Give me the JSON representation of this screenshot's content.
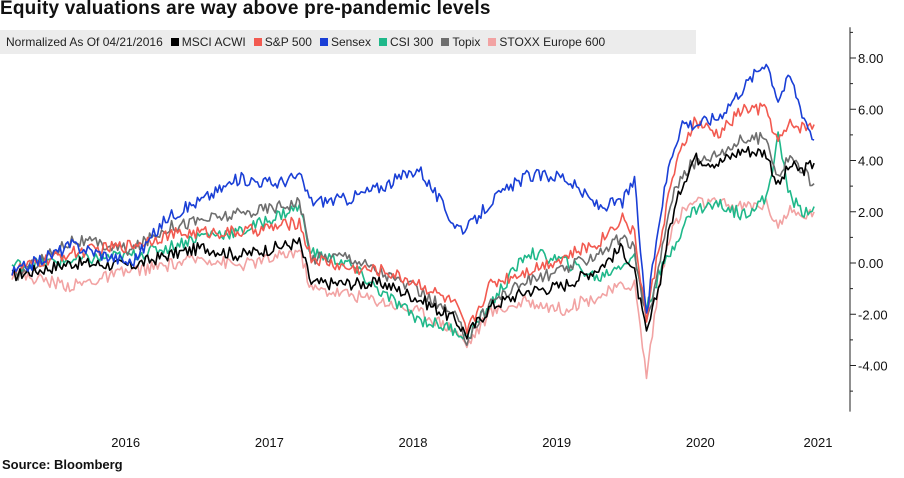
{
  "title": "Equity valuations are way above pre-pandemic levels",
  "source": "Source: Bloomberg",
  "chart_data": {
    "type": "line",
    "subtitle": "Normalized As Of 04/21/2016",
    "x_ticks": [
      "2016",
      "2017",
      "2018",
      "2019",
      "2020",
      "2021"
    ],
    "y_ticks": [
      "8.00",
      "6.00",
      "4.00",
      "2.00",
      "0.00",
      "-2.00",
      "-4.00"
    ],
    "ylim": [
      -5.8,
      9.2
    ],
    "xlim": [
      "2015-08",
      "2021-06"
    ],
    "grid": false,
    "legend_position": "top",
    "series": [
      {
        "name": "MSCI ACWI",
        "color": "#000000",
        "points": [
          [
            "2015-09",
            -0.5
          ],
          [
            "2016-02",
            0.0
          ],
          [
            "2016-07",
            -0.1
          ],
          [
            "2016-10",
            0.3
          ],
          [
            "2017-01",
            0.6
          ],
          [
            "2017-04",
            0.3
          ],
          [
            "2017-07",
            0.6
          ],
          [
            "2017-09",
            0.8
          ],
          [
            "2017-10",
            -0.8
          ],
          [
            "2018-01",
            -0.8
          ],
          [
            "2018-04",
            -0.8
          ],
          [
            "2018-07",
            -1.4
          ],
          [
            "2018-10",
            -2.2
          ],
          [
            "2018-11",
            -2.8
          ],
          [
            "2019-01",
            -1.7
          ],
          [
            "2019-04",
            -1.1
          ],
          [
            "2019-07",
            -0.9
          ],
          [
            "2019-10",
            -0.2
          ],
          [
            "2019-12",
            0.6
          ],
          [
            "2020-01",
            -0.4
          ],
          [
            "2020-02",
            -2.8
          ],
          [
            "2020-03",
            -1.0
          ],
          [
            "2020-04",
            1.5
          ],
          [
            "2020-05",
            3.1
          ],
          [
            "2020-06",
            4.1
          ],
          [
            "2020-08",
            3.9
          ],
          [
            "2020-10",
            4.4
          ],
          [
            "2020-12",
            4.3
          ],
          [
            "2021-01",
            3.0
          ],
          [
            "2021-02",
            3.8
          ],
          [
            "2021-03",
            3.6
          ],
          [
            "2021-04",
            3.9
          ]
        ]
      },
      {
        "name": "S&P 500",
        "color": "#f25a50",
        "points": [
          [
            "2015-09",
            -0.3
          ],
          [
            "2016-02",
            0.4
          ],
          [
            "2016-07",
            0.7
          ],
          [
            "2016-10",
            1.1
          ],
          [
            "2017-01",
            1.2
          ],
          [
            "2017-04",
            1.2
          ],
          [
            "2017-07",
            1.4
          ],
          [
            "2017-09",
            1.6
          ],
          [
            "2017-10",
            0.2
          ],
          [
            "2018-01",
            -0.2
          ],
          [
            "2018-04",
            -0.3
          ],
          [
            "2018-07",
            -0.8
          ],
          [
            "2018-10",
            -1.6
          ],
          [
            "2018-11",
            -2.7
          ],
          [
            "2019-01",
            -0.8
          ],
          [
            "2019-04",
            -0.3
          ],
          [
            "2019-07",
            0.2
          ],
          [
            "2019-10",
            0.8
          ],
          [
            "2019-12",
            1.8
          ],
          [
            "2020-01",
            1.1
          ],
          [
            "2020-02",
            -2.2
          ],
          [
            "2020-03",
            0.5
          ],
          [
            "2020-04",
            3.0
          ],
          [
            "2020-05",
            4.5
          ],
          [
            "2020-06",
            5.5
          ],
          [
            "2020-08",
            5.0
          ],
          [
            "2020-10",
            6.0
          ],
          [
            "2020-12",
            6.0
          ],
          [
            "2021-01",
            4.7
          ],
          [
            "2021-02",
            5.4
          ],
          [
            "2021-03",
            5.3
          ],
          [
            "2021-04",
            5.4
          ]
        ]
      },
      {
        "name": "Sensex",
        "color": "#1a3fd6",
        "points": [
          [
            "2015-09",
            -0.4
          ],
          [
            "2016-02",
            0.7
          ],
          [
            "2016-07",
            0.0
          ],
          [
            "2016-10",
            1.8
          ],
          [
            "2017-01",
            2.5
          ],
          [
            "2017-04",
            3.3
          ],
          [
            "2017-07",
            3.1
          ],
          [
            "2017-09",
            3.4
          ],
          [
            "2017-10",
            2.4
          ],
          [
            "2018-01",
            2.5
          ],
          [
            "2018-04",
            3.0
          ],
          [
            "2018-07",
            3.7
          ],
          [
            "2018-10",
            1.5
          ],
          [
            "2018-11",
            1.3
          ],
          [
            "2019-01",
            2.4
          ],
          [
            "2019-04",
            3.4
          ],
          [
            "2019-07",
            3.4
          ],
          [
            "2019-10",
            2.2
          ],
          [
            "2019-12",
            2.4
          ],
          [
            "2020-01",
            3.2
          ],
          [
            "2020-02",
            -2.1
          ],
          [
            "2020-03",
            1.5
          ],
          [
            "2020-04",
            4.1
          ],
          [
            "2020-05",
            5.5
          ],
          [
            "2020-06",
            5.4
          ],
          [
            "2020-08",
            5.7
          ],
          [
            "2020-10",
            6.8
          ],
          [
            "2020-12",
            7.9
          ],
          [
            "2021-01",
            6.4
          ],
          [
            "2021-02",
            7.3
          ],
          [
            "2021-03",
            5.9
          ],
          [
            "2021-04",
            4.8
          ]
        ]
      },
      {
        "name": "CSI 300",
        "color": "#1fb88a",
        "points": [
          [
            "2015-09",
            -0.1
          ],
          [
            "2016-02",
            0.1
          ],
          [
            "2016-07",
            0.3
          ],
          [
            "2016-10",
            0.6
          ],
          [
            "2017-01",
            1.1
          ],
          [
            "2017-04",
            1.2
          ],
          [
            "2017-07",
            1.8
          ],
          [
            "2017-09",
            2.2
          ],
          [
            "2017-10",
            0.4
          ],
          [
            "2018-01",
            0.0
          ],
          [
            "2018-04",
            -1.2
          ],
          [
            "2018-07",
            -2.2
          ],
          [
            "2018-10",
            -2.6
          ],
          [
            "2018-11",
            -2.9
          ],
          [
            "2019-01",
            -1.6
          ],
          [
            "2019-04",
            0.4
          ],
          [
            "2019-07",
            0.1
          ],
          [
            "2019-10",
            -0.6
          ],
          [
            "2019-12",
            0.0
          ],
          [
            "2020-01",
            0.2
          ],
          [
            "2020-02",
            -1.8
          ],
          [
            "2020-03",
            -0.5
          ],
          [
            "2020-04",
            0.4
          ],
          [
            "2020-05",
            1.4
          ],
          [
            "2020-06",
            2.1
          ],
          [
            "2020-08",
            2.3
          ],
          [
            "2020-10",
            1.9
          ],
          [
            "2020-12",
            2.5
          ],
          [
            "2021-01",
            4.9
          ],
          [
            "2021-02",
            2.6
          ],
          [
            "2021-03",
            2.0
          ],
          [
            "2021-04",
            2.2
          ]
        ]
      },
      {
        "name": "Topix",
        "color": "#6e6e6e",
        "points": [
          [
            "2015-09",
            -0.6
          ],
          [
            "2016-02",
            0.9
          ],
          [
            "2016-07",
            0.5
          ],
          [
            "2016-10",
            1.4
          ],
          [
            "2017-01",
            1.7
          ],
          [
            "2017-04",
            1.9
          ],
          [
            "2017-07",
            2.2
          ],
          [
            "2017-09",
            2.4
          ],
          [
            "2017-10",
            0.2
          ],
          [
            "2018-01",
            0.3
          ],
          [
            "2018-04",
            -0.4
          ],
          [
            "2018-07",
            -1.1
          ],
          [
            "2018-10",
            -2.1
          ],
          [
            "2018-11",
            -3.0
          ],
          [
            "2019-01",
            -1.5
          ],
          [
            "2019-04",
            -0.7
          ],
          [
            "2019-07",
            -0.3
          ],
          [
            "2019-10",
            0.4
          ],
          [
            "2019-12",
            1.0
          ],
          [
            "2020-01",
            0.5
          ],
          [
            "2020-02",
            -2.4
          ],
          [
            "2020-03",
            -0.3
          ],
          [
            "2020-04",
            2.4
          ],
          [
            "2020-05",
            3.5
          ],
          [
            "2020-06",
            3.9
          ],
          [
            "2020-08",
            4.3
          ],
          [
            "2020-10",
            4.8
          ],
          [
            "2020-12",
            4.9
          ],
          [
            "2021-01",
            3.4
          ],
          [
            "2021-02",
            4.2
          ],
          [
            "2021-03",
            3.6
          ],
          [
            "2021-04",
            3.1
          ]
        ]
      },
      {
        "name": "STOXX Europe 600",
        "color": "#f2a3a3",
        "points": [
          [
            "2015-09",
            -0.4
          ],
          [
            "2016-02",
            -0.9
          ],
          [
            "2016-07",
            -0.3
          ],
          [
            "2016-10",
            -0.1
          ],
          [
            "2017-01",
            0.2
          ],
          [
            "2017-04",
            -0.1
          ],
          [
            "2017-07",
            0.2
          ],
          [
            "2017-09",
            0.5
          ],
          [
            "2017-10",
            -1.0
          ],
          [
            "2018-01",
            -1.2
          ],
          [
            "2018-04",
            -1.5
          ],
          [
            "2018-07",
            -1.9
          ],
          [
            "2018-10",
            -2.6
          ],
          [
            "2018-11",
            -3.2
          ],
          [
            "2019-01",
            -1.9
          ],
          [
            "2019-04",
            -1.5
          ],
          [
            "2019-07",
            -1.8
          ],
          [
            "2019-10",
            -1.3
          ],
          [
            "2019-12",
            -0.9
          ],
          [
            "2020-01",
            -0.8
          ],
          [
            "2020-02",
            -4.4
          ],
          [
            "2020-03",
            -1.0
          ],
          [
            "2020-04",
            1.2
          ],
          [
            "2020-05",
            2.0
          ],
          [
            "2020-06",
            2.4
          ],
          [
            "2020-08",
            2.3
          ],
          [
            "2020-10",
            2.2
          ],
          [
            "2020-12",
            2.3
          ],
          [
            "2021-01",
            1.5
          ],
          [
            "2021-02",
            2.0
          ],
          [
            "2021-03",
            1.8
          ],
          [
            "2021-04",
            2.0
          ]
        ]
      }
    ]
  }
}
